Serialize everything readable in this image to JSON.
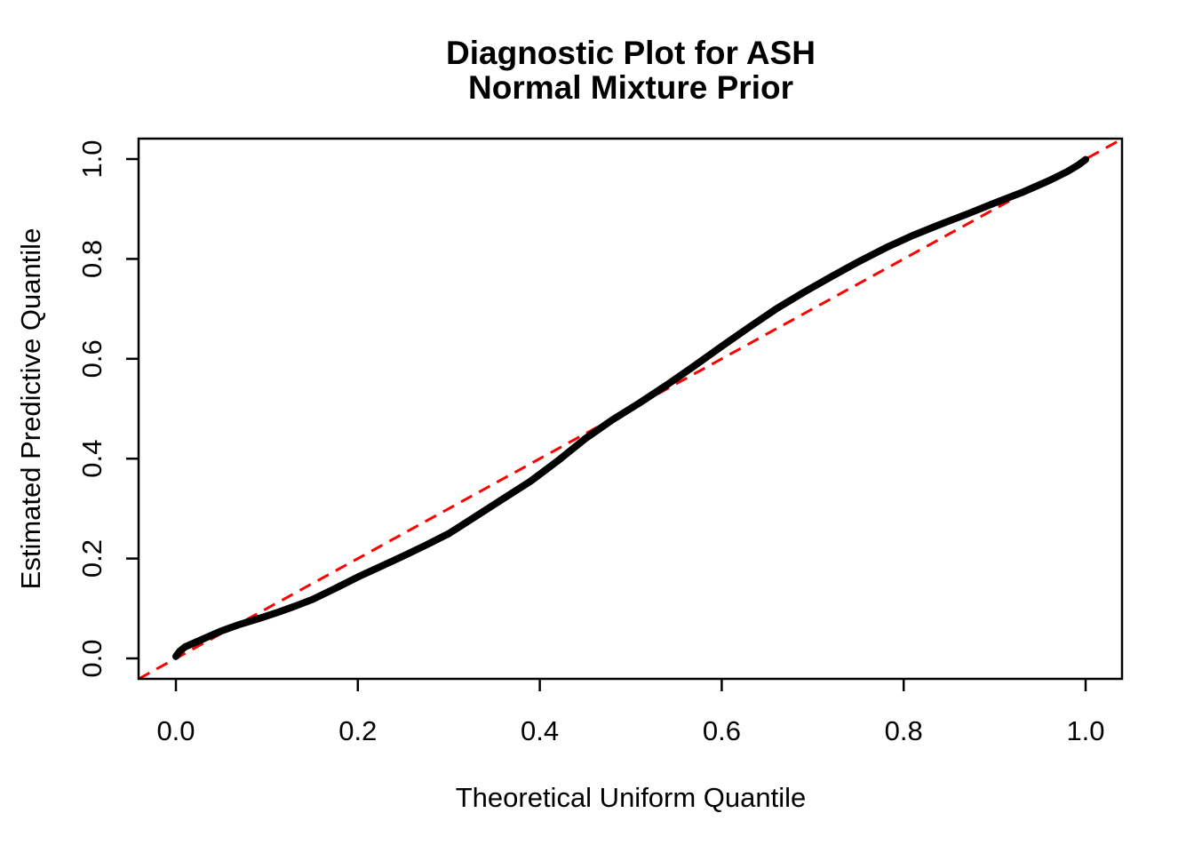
{
  "chart": {
    "title_line1": "Diagnostic Plot for ASH",
    "title_line2": "Normal Mixture Prior",
    "xlabel": "Theoretical Uniform Quantile",
    "ylabel": "Estimated Predictive Quantile"
  },
  "chart_data": {
    "type": "line",
    "title": "Diagnostic Plot for ASH\nNormal Mixture Prior",
    "xlabel": "Theoretical Uniform Quantile",
    "ylabel": "Estimated Predictive Quantile",
    "xlim": [
      -0.041,
      1.041
    ],
    "ylim": [
      -0.041,
      1.041
    ],
    "grid": false,
    "legend": "none",
    "x_ticks": [
      0.0,
      0.2,
      0.4,
      0.6,
      0.8,
      1.0
    ],
    "y_ticks": [
      0.0,
      0.2,
      0.4,
      0.6,
      0.8,
      1.0
    ],
    "x_tick_labels": [
      "0.0",
      "0.2",
      "0.4",
      "0.6",
      "0.8",
      "1.0"
    ],
    "y_tick_labels": [
      "0.0",
      "0.2",
      "0.4",
      "0.6",
      "0.8",
      "1.0"
    ],
    "series": [
      {
        "name": "estimated-predictive-quantile-curve",
        "style": "solid-thick",
        "color": "#000000",
        "points": [
          [
            0.0,
            0.004
          ],
          [
            0.004,
            0.014
          ],
          [
            0.01,
            0.023
          ],
          [
            0.02,
            0.031
          ],
          [
            0.035,
            0.043
          ],
          [
            0.05,
            0.055
          ],
          [
            0.07,
            0.068
          ],
          [
            0.09,
            0.079
          ],
          [
            0.11,
            0.091
          ],
          [
            0.13,
            0.104
          ],
          [
            0.15,
            0.118
          ],
          [
            0.175,
            0.14
          ],
          [
            0.2,
            0.163
          ],
          [
            0.225,
            0.184
          ],
          [
            0.25,
            0.205
          ],
          [
            0.275,
            0.227
          ],
          [
            0.3,
            0.25
          ],
          [
            0.33,
            0.285
          ],
          [
            0.36,
            0.32
          ],
          [
            0.39,
            0.355
          ],
          [
            0.42,
            0.396
          ],
          [
            0.45,
            0.44
          ],
          [
            0.48,
            0.478
          ],
          [
            0.51,
            0.512
          ],
          [
            0.54,
            0.548
          ],
          [
            0.57,
            0.586
          ],
          [
            0.6,
            0.625
          ],
          [
            0.63,
            0.663
          ],
          [
            0.66,
            0.7
          ],
          [
            0.69,
            0.733
          ],
          [
            0.72,
            0.764
          ],
          [
            0.75,
            0.794
          ],
          [
            0.78,
            0.822
          ],
          [
            0.81,
            0.847
          ],
          [
            0.84,
            0.869
          ],
          [
            0.87,
            0.89
          ],
          [
            0.9,
            0.912
          ],
          [
            0.93,
            0.933
          ],
          [
            0.96,
            0.957
          ],
          [
            0.98,
            0.975
          ],
          [
            0.992,
            0.988
          ],
          [
            1.0,
            0.999
          ]
        ]
      },
      {
        "name": "identity-reference-line",
        "style": "dashed",
        "color": "#FF0000",
        "points": [
          [
            -0.041,
            -0.041
          ],
          [
            1.041,
            1.041
          ]
        ]
      }
    ]
  },
  "colors": {
    "curve": "#000000",
    "reference_line": "#FF0000",
    "axis": "#000000",
    "background": "#FFFFFF"
  }
}
